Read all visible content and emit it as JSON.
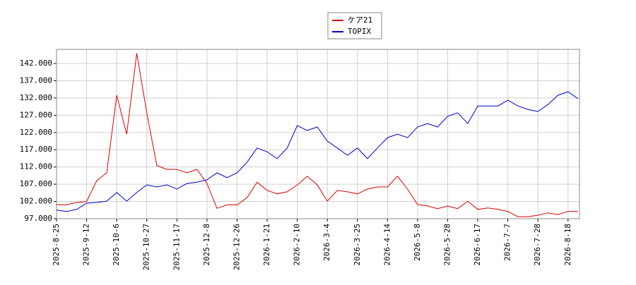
{
  "chart_data": {
    "type": "line",
    "categories": [
      "2025-8-25",
      null,
      null,
      "2025-9-12",
      null,
      null,
      "2025-10-6",
      null,
      null,
      "2025-10-27",
      null,
      null,
      "2025-11-17",
      null,
      null,
      "2025-12-8",
      null,
      null,
      "2025-12-26",
      null,
      null,
      "2026-1-21",
      null,
      null,
      "2026-2-10",
      null,
      null,
      "2026-3-4",
      null,
      null,
      "2026-3-25",
      null,
      null,
      "2026-4-14",
      null,
      null,
      "2026-5-8",
      null,
      null,
      "2026-5-28",
      null,
      null,
      "2026-6-17",
      null,
      null,
      "2026-7-7",
      null,
      null,
      "2026-7-28",
      null,
      null,
      "2026-8-18",
      null
    ],
    "series": [
      {
        "name": "ケア21",
        "color": "#dd0000",
        "values": [
          101.1,
          101,
          101.7,
          102,
          108,
          110.3,
          132.8,
          121.5,
          145,
          127.7,
          112.4,
          111.3,
          111.3,
          110.3,
          111.3,
          107.2,
          100,
          101,
          101,
          103.1,
          107.6,
          105.2,
          104.2,
          104.8,
          106.8,
          109.3,
          106.8,
          102.1,
          105.2,
          104.8,
          104.2,
          105.6,
          106.2,
          106.2,
          109.3,
          105.6,
          101.1,
          100.7,
          99.9,
          100.7,
          99.9,
          102.1,
          99.7,
          100.1,
          99.7,
          99.1,
          97.6,
          97.6,
          98,
          98.7,
          98.2,
          99.1,
          99.1
        ]
      },
      {
        "name": "TOPIX",
        "color": "#0000cc",
        "values": [
          99.5,
          99.1,
          99.7,
          101.5,
          101.7,
          102.1,
          104.6,
          102.1,
          104.6,
          106.8,
          106.2,
          106.8,
          105.6,
          107.2,
          107.6,
          108.3,
          110.3,
          108.9,
          110.3,
          113.4,
          117.5,
          116.4,
          114.4,
          117.5,
          124,
          122.6,
          123.6,
          119.5,
          117.5,
          115.4,
          117.5,
          114.4,
          117.5,
          120.5,
          121.5,
          120.5,
          123.6,
          124.6,
          123.6,
          126.7,
          127.7,
          124.6,
          129.7,
          129.7,
          129.7,
          131.4,
          129.7,
          128.7,
          128.1,
          130.1,
          132.8,
          133.8,
          131.8
        ]
      }
    ],
    "ylim": [
      97,
      146.1
    ],
    "yticks": [
      {
        "value": 97,
        "label": "97.000"
      },
      {
        "value": 102,
        "label": "102.000"
      },
      {
        "value": 107,
        "label": "107.000"
      },
      {
        "value": 112,
        "label": "112.000"
      },
      {
        "value": 117,
        "label": "117.000"
      },
      {
        "value": 122,
        "label": "122.000"
      },
      {
        "value": 127,
        "label": "127.000"
      },
      {
        "value": 132,
        "label": "132.000"
      },
      {
        "value": 137,
        "label": "137.000"
      },
      {
        "value": 142,
        "label": "142.000"
      }
    ],
    "grid": true,
    "legend": "top"
  }
}
